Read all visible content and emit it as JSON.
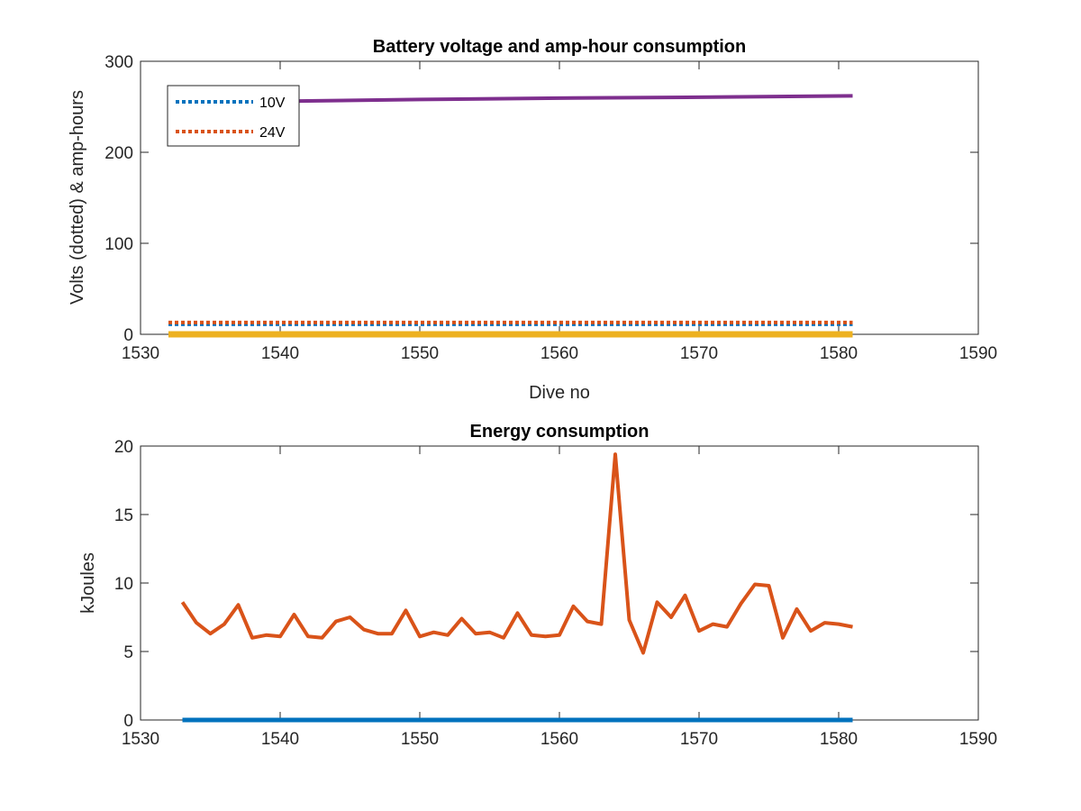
{
  "chart_data": [
    {
      "type": "line",
      "title": "Battery voltage and amp-hour consumption",
      "xlabel": "Dive no",
      "ylabel": "Volts (dotted) & amp-hours",
      "xlim": [
        1530,
        1590
      ],
      "ylim": [
        0,
        300
      ],
      "xticks": [
        1530,
        1540,
        1550,
        1560,
        1570,
        1580,
        1590
      ],
      "yticks": [
        0,
        100,
        200,
        300
      ],
      "grid": false,
      "legend_position": "top-left",
      "series": [
        {
          "name": "10V",
          "color": "#0072BD",
          "style": "dotted",
          "x": [
            1532,
            1581
          ],
          "y": [
            11,
            11
          ]
        },
        {
          "name": "24V",
          "color": "#D95319",
          "style": "dotted",
          "x": [
            1532,
            1581
          ],
          "y": [
            13,
            13
          ]
        },
        {
          "color": "#7E2F8E",
          "style": "solid",
          "x": [
            1532,
            1540,
            1550,
            1560,
            1570,
            1581
          ],
          "y": [
            254,
            256,
            258,
            259.5,
            260.5,
            262
          ]
        },
        {
          "color": "#EDB120",
          "style": "solid",
          "x": [
            1532,
            1581
          ],
          "y": [
            0,
            0
          ]
        }
      ]
    },
    {
      "type": "line",
      "title": "Energy consumption",
      "xlabel": "",
      "ylabel": "kJoules",
      "xlim": [
        1530,
        1590
      ],
      "ylim": [
        0,
        20
      ],
      "xticks": [
        1530,
        1540,
        1550,
        1560,
        1570,
        1580,
        1590
      ],
      "yticks": [
        0,
        5,
        10,
        15,
        20
      ],
      "grid": false,
      "series": [
        {
          "color": "#0072BD",
          "style": "solid",
          "x": [
            1533,
            1581
          ],
          "y": [
            0,
            0
          ]
        },
        {
          "color": "#D95319",
          "style": "solid",
          "x": [
            1533,
            1534,
            1535,
            1536,
            1537,
            1538,
            1539,
            1540,
            1541,
            1542,
            1543,
            1544,
            1545,
            1546,
            1547,
            1548,
            1549,
            1550,
            1551,
            1552,
            1553,
            1554,
            1555,
            1556,
            1557,
            1558,
            1559,
            1560,
            1561,
            1562,
            1563,
            1564,
            1565,
            1566,
            1567,
            1568,
            1569,
            1570,
            1571,
            1572,
            1573,
            1574,
            1575,
            1576,
            1577,
            1578,
            1579,
            1580,
            1581
          ],
          "y": [
            8.6,
            7.1,
            6.3,
            7.0,
            8.4,
            6.0,
            6.2,
            6.1,
            7.7,
            6.1,
            6.0,
            7.2,
            7.5,
            6.6,
            6.3,
            6.3,
            8.0,
            6.1,
            6.4,
            6.2,
            7.4,
            6.3,
            6.4,
            6.0,
            7.8,
            6.2,
            6.1,
            6.2,
            8.3,
            7.2,
            7.0,
            19.4,
            7.3,
            4.9,
            8.6,
            7.5,
            9.1,
            6.5,
            7.0,
            6.8,
            8.5,
            9.9,
            9.8,
            6.0,
            8.1,
            6.5,
            7.1,
            7.0,
            6.8
          ]
        }
      ]
    }
  ]
}
